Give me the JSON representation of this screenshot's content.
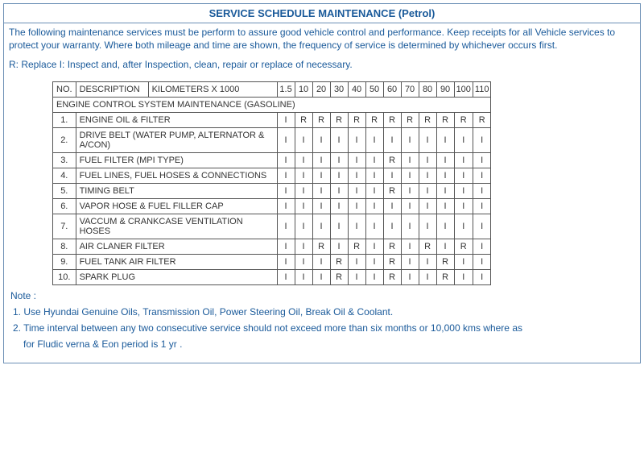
{
  "title": "SERVICE SCHEDULE MAINTENANCE (Petrol)",
  "intro1": "The following maintenance services must be perform to assure good vehicle control and performance. Keep receipts for all Vehicle services to protect your warranty. Where both mileage and time are shown, the frequency of service is determined by whichever occurs first.",
  "intro2": "R: Replace I: Inspect and, after Inspection, clean, repair or replace of necessary.",
  "colHeaders": {
    "no": "NO.",
    "desc": "DESCRIPTION",
    "km": "KILOMETERS X 1000",
    "k": [
      "1.5",
      "10",
      "20",
      "30",
      "40",
      "50",
      "60",
      "70",
      "80",
      "90",
      "100",
      "110"
    ]
  },
  "sectionTitle": "ENGINE CONTROL SYSTEM MAINTENANCE (GASOLINE)",
  "rows": [
    {
      "no": "1.",
      "desc": "ENGINE OIL & FILTER",
      "v": [
        "I",
        "R",
        "R",
        "R",
        "R",
        "R",
        "R",
        "R",
        "R",
        "R",
        "R",
        "R"
      ]
    },
    {
      "no": "2.",
      "desc": "DRIVE BELT (WATER PUMP, ALTERNATOR & A/CON)",
      "v": [
        "I",
        "I",
        "I",
        "I",
        "I",
        "I",
        "I",
        "I",
        "I",
        "I",
        "I",
        "I"
      ]
    },
    {
      "no": "3.",
      "desc": "FUEL FILTER (MPI TYPE)",
      "v": [
        "I",
        "I",
        "I",
        "I",
        "I",
        "I",
        "R",
        "I",
        "I",
        "I",
        "I",
        "I"
      ]
    },
    {
      "no": "4.",
      "desc": "FUEL LINES, FUEL HOSES & CONNECTIONS",
      "v": [
        "I",
        "I",
        "I",
        "I",
        "I",
        "I",
        "I",
        "I",
        "I",
        "I",
        "I",
        "I"
      ]
    },
    {
      "no": "5.",
      "desc": "TIMING BELT",
      "v": [
        "I",
        "I",
        "I",
        "I",
        "I",
        "I",
        "R",
        "I",
        "I",
        "I",
        "I",
        "I"
      ]
    },
    {
      "no": "6.",
      "desc": "VAPOR HOSE & FUEL FILLER CAP",
      "v": [
        "I",
        "I",
        "I",
        "I",
        "I",
        "I",
        "I",
        "I",
        "I",
        "I",
        "I",
        "I"
      ]
    },
    {
      "no": "7.",
      "desc": "VACCUM & CRANKCASE VENTILATION HOSES",
      "v": [
        "I",
        "I",
        "I",
        "I",
        "I",
        "I",
        "I",
        "I",
        "I",
        "I",
        "I",
        "I"
      ]
    },
    {
      "no": "8.",
      "desc": "AIR CLANER FILTER",
      "v": [
        "I",
        "I",
        "R",
        "I",
        "R",
        "I",
        "R",
        "I",
        "R",
        "I",
        "R",
        "I"
      ]
    },
    {
      "no": "9.",
      "desc": "FUEL TANK AIR FILTER",
      "v": [
        "I",
        "I",
        "I",
        "R",
        "I",
        "I",
        "R",
        "I",
        "I",
        "R",
        "I",
        "I"
      ]
    },
    {
      "no": "10.",
      "desc": "SPARK PLUG",
      "v": [
        "I",
        "I",
        "I",
        "R",
        "I",
        "I",
        "R",
        "I",
        "I",
        "R",
        "I",
        "I"
      ]
    }
  ],
  "notesHeader": "Note :",
  "notes": [
    "1. Use Hyundai Genuine Oils, Transmission Oil, Power Steering Oil, Break Oil & Coolant.",
    "2. Time interval between any two consecutive service should not exceed more than six months or 10,000 kms where as"
  ],
  "note2cont": "for Fludic verna & Eon period is 1 yr ."
}
